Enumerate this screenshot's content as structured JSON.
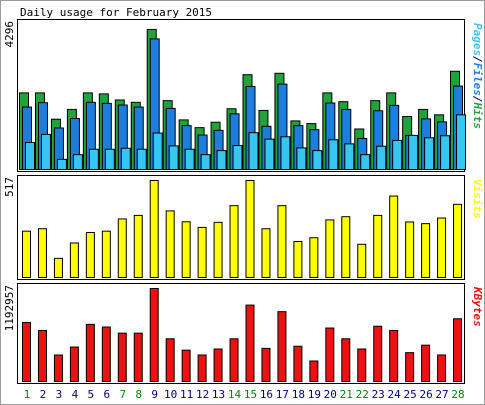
{
  "title": "Daily usage for February 2015",
  "colors": {
    "hits": "#1fa33a",
    "files": "#1c7fe0",
    "pages": "#36c6ef",
    "visits": "#ffff00",
    "kbytes": "#ee1111",
    "weekend_label": "#008800",
    "weekday_label": "#000080"
  },
  "chart_data": [
    {
      "type": "bar",
      "panel": "hits-files-pages",
      "title": "Daily usage for February 2015",
      "ylabel_parts": [
        {
          "text": "Pages",
          "color_key": "pages"
        },
        {
          "text": "/",
          "color_key": "weekday_label"
        },
        {
          "text": "Files",
          "color_key": "files"
        },
        {
          "text": "/",
          "color_key": "weekday_label"
        },
        {
          "text": "Hits",
          "color_key": "hits"
        }
      ],
      "ymax_label": "4296",
      "ylim": [
        0,
        4296
      ],
      "categories": [
        "1",
        "2",
        "3",
        "4",
        "5",
        "6",
        "7",
        "8",
        "9",
        "10",
        "11",
        "12",
        "13",
        "14",
        "15",
        "16",
        "17",
        "18",
        "19",
        "20",
        "21",
        "22",
        "23",
        "24",
        "25",
        "26",
        "27",
        "28"
      ],
      "weekend": [
        "1",
        "7",
        "8",
        "14",
        "15",
        "21",
        "22",
        "28"
      ],
      "series": [
        {
          "key": "hits",
          "values": [
            2270,
            2270,
            1490,
            1780,
            2270,
            2240,
            2060,
            1990,
            4150,
            2040,
            1470,
            1240,
            1400,
            1800,
            2810,
            1750,
            2850,
            1440,
            1360,
            2270,
            2010,
            1200,
            2040,
            2270,
            1570,
            1780,
            1620,
            2910
          ]
        },
        {
          "key": "files",
          "values": [
            1850,
            1980,
            1230,
            1510,
            1990,
            1960,
            1910,
            1850,
            3870,
            1810,
            1300,
            1020,
            1160,
            1650,
            2460,
            1280,
            2530,
            1300,
            1180,
            1970,
            1780,
            920,
            1740,
            1900,
            1010,
            1500,
            1410,
            2470
          ]
        },
        {
          "key": "pages",
          "values": [
            800,
            1040,
            300,
            440,
            600,
            600,
            630,
            600,
            1080,
            700,
            600,
            440,
            560,
            710,
            1090,
            900,
            970,
            640,
            560,
            880,
            760,
            440,
            690,
            860,
            1010,
            940,
            1000,
            1620
          ]
        }
      ]
    },
    {
      "type": "bar",
      "panel": "visits",
      "ylabel": "Visits",
      "ymax_label": "517",
      "ylim": [
        0,
        517
      ],
      "categories": [
        "1",
        "2",
        "3",
        "4",
        "5",
        "6",
        "7",
        "8",
        "9",
        "10",
        "11",
        "12",
        "13",
        "14",
        "15",
        "16",
        "17",
        "18",
        "19",
        "20",
        "21",
        "22",
        "23",
        "24",
        "25",
        "26",
        "27",
        "28"
      ],
      "series": [
        {
          "key": "visits",
          "values": [
            247,
            260,
            102,
            184,
            240,
            247,
            312,
            331,
            517,
            355,
            297,
            267,
            294,
            383,
            517,
            260,
            383,
            192,
            212,
            307,
            324,
            177,
            331,
            434,
            296,
            287,
            317,
            390
          ]
        }
      ]
    },
    {
      "type": "bar",
      "panel": "kbytes",
      "ylabel": "KBytes",
      "ymax_label": "1192957",
      "ylim": [
        0,
        1192957
      ],
      "categories": [
        "1",
        "2",
        "3",
        "4",
        "5",
        "6",
        "7",
        "8",
        "9",
        "10",
        "11",
        "12",
        "13",
        "14",
        "15",
        "16",
        "17",
        "18",
        "19",
        "20",
        "21",
        "22",
        "23",
        "24",
        "25",
        "26",
        "27",
        "28"
      ],
      "series": [
        {
          "key": "kbytes",
          "values": [
            757000,
            655000,
            340000,
            442000,
            733000,
            699000,
            620000,
            620000,
            1192957,
            548000,
            402000,
            340000,
            417000,
            548000,
            980000,
            425000,
            896000,
            452000,
            263000,
            686000,
            548000,
            417000,
            709000,
            655000,
            370000,
            466000,
            340000,
            805000
          ]
        }
      ]
    }
  ]
}
